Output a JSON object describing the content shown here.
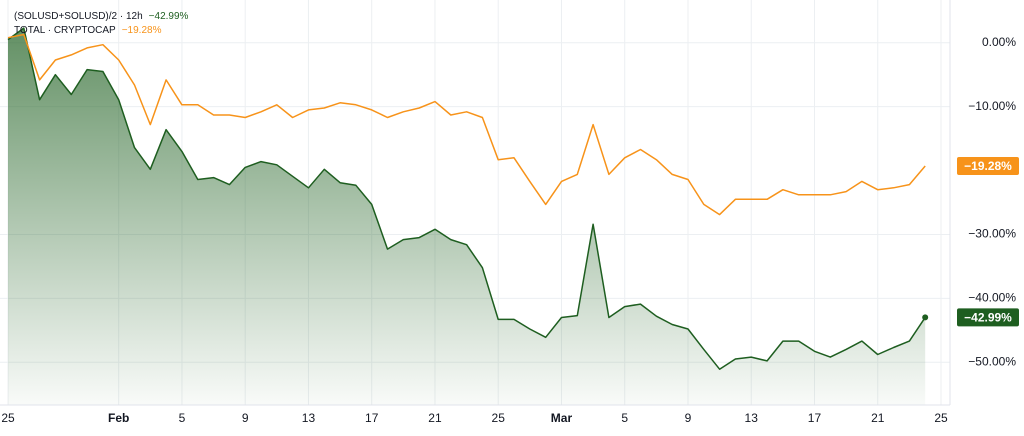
{
  "chart_data": {
    "type": "line",
    "categories": [
      "25",
      null,
      null,
      null,
      null,
      null,
      null,
      "Feb",
      null,
      null,
      null,
      "5",
      null,
      null,
      null,
      "9",
      null,
      null,
      null,
      "13",
      null,
      null,
      null,
      "17",
      null,
      null,
      null,
      "21",
      null,
      null,
      null,
      "25",
      null,
      null,
      null,
      "Mar",
      null,
      null,
      null,
      "5",
      null,
      null,
      null,
      "9",
      null,
      null,
      null,
      "13",
      null,
      null,
      null,
      "17",
      null,
      null,
      null,
      "21",
      null,
      null,
      null,
      "25"
    ],
    "series": [
      {
        "name": "(SOLUSD+SOLUSD)/2 · 12h",
        "color": "#1e5e20",
        "area": true,
        "values": [
          0.5,
          2.3,
          -8.9,
          -5,
          -8.1,
          -4.2,
          -4.5,
          -8.9,
          -16.4,
          -19.8,
          -13.6,
          -17,
          -21.4,
          -21.1,
          -22.2,
          -19.5,
          -18.6,
          -19.1,
          -20.9,
          -22.7,
          -19.8,
          -21.9,
          -22.3,
          -25.3,
          -32.3,
          -30.8,
          -30.5,
          -29.2,
          -30.8,
          -31.6,
          -35.2,
          -43.3,
          -43.3,
          -44.8,
          -46.1,
          -43,
          -42.7,
          -28.4,
          -43,
          -41.3,
          -40.9,
          -42.8,
          -44.1,
          -44.8,
          -48,
          -51.1,
          -49.5,
          -49.2,
          -49.8,
          -46.7,
          -46.7,
          -48.3,
          -49.2,
          -48,
          -46.7,
          -48.8,
          -47.7,
          -46.7,
          -42.99,
          null
        ],
        "value_labels": [
          null,
          null,
          null,
          null,
          null,
          null,
          null,
          null,
          null,
          null,
          null,
          null,
          null,
          null,
          null,
          null,
          null,
          null,
          null,
          null,
          null,
          null,
          null,
          null,
          null,
          null,
          null,
          null,
          null,
          null,
          null,
          null,
          null,
          null,
          null,
          null,
          null,
          null,
          null,
          null,
          null,
          null,
          null,
          null,
          null,
          null,
          null,
          null,
          null,
          null,
          null,
          null,
          null,
          null,
          null,
          null,
          null,
          null,
          "−42.99%",
          null
        ]
      },
      {
        "name": "TOTAL · CRYPTOCAP",
        "color": "#f7931a",
        "area": false,
        "values": [
          0.8,
          1.3,
          -5.8,
          -2.7,
          -1.9,
          -0.8,
          -0.3,
          -2.7,
          -6.6,
          -12.8,
          -5.8,
          -9.7,
          -9.7,
          -11.3,
          -11.3,
          -11.7,
          -10.8,
          -9.7,
          -11.7,
          -10.5,
          -10.2,
          -9.4,
          -9.7,
          -10.5,
          -11.7,
          -10.8,
          -10.2,
          -9.2,
          -11.3,
          -10.8,
          -11.7,
          -18.3,
          -18,
          -21.7,
          -25.3,
          -21.7,
          -20.6,
          -12.8,
          -20.6,
          -18,
          -16.7,
          -18.3,
          -20.6,
          -21.4,
          -25.3,
          -26.9,
          -24.5,
          -24.5,
          -24.5,
          -23,
          -23.8,
          -23.8,
          -23.8,
          -23.3,
          -21.7,
          -23,
          -22.7,
          -22.2,
          -19.28,
          null
        ],
        "value_labels": [
          null,
          null,
          null,
          null,
          null,
          null,
          null,
          null,
          null,
          null,
          null,
          null,
          null,
          null,
          null,
          null,
          null,
          null,
          null,
          null,
          null,
          null,
          null,
          null,
          null,
          null,
          null,
          null,
          null,
          null,
          null,
          null,
          null,
          null,
          null,
          null,
          null,
          null,
          null,
          null,
          null,
          null,
          null,
          null,
          null,
          null,
          null,
          null,
          null,
          null,
          null,
          null,
          null,
          null,
          null,
          null,
          null,
          null,
          "−19.28%",
          null
        ]
      }
    ],
    "ylim": [
      -56.7,
      6.7
    ],
    "yticks": [
      {
        "value": 0,
        "label": "0.00%"
      },
      {
        "value": -10,
        "label": "−10.00%"
      },
      {
        "value": -30,
        "label": "−30.00%"
      },
      {
        "value": -40,
        "label": "−40.00%"
      },
      {
        "value": -50,
        "label": "−50.00%"
      }
    ],
    "grid": true
  }
}
